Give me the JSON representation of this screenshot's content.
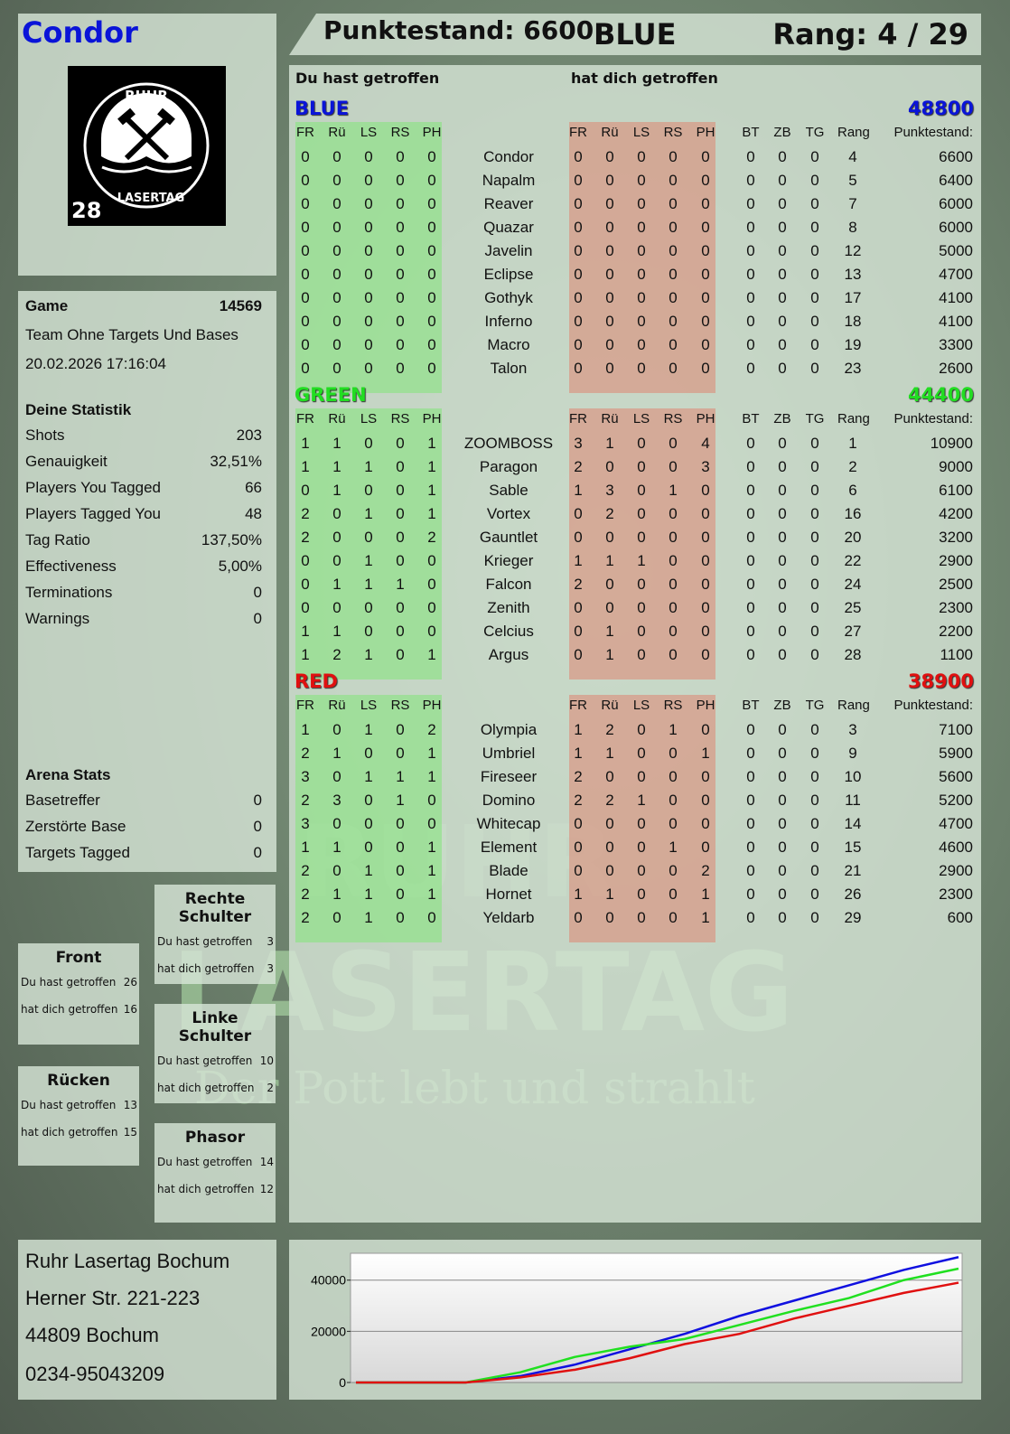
{
  "player": {
    "name": "Condor",
    "logo_text": [
      "RUHR",
      "LASERTAG",
      "28"
    ]
  },
  "header": {
    "score_label": "Punktestand: 6600",
    "team": "BLUE",
    "rank_label": "Rang: 4 / 29"
  },
  "main": {
    "you_hit_label": "Du hast getroffen",
    "hit_you_label": "hat dich getroffen",
    "columns_left": [
      "FR",
      "Rü",
      "LS",
      "RS",
      "PH"
    ],
    "columns_right": [
      "FR",
      "Rü",
      "LS",
      "RS",
      "PH"
    ],
    "columns_extra": [
      "BT",
      "ZB",
      "TG",
      "Rang",
      "Punktestand:"
    ],
    "teams": [
      {
        "name": "BLUE",
        "total": "48800",
        "color": "#0a14d8",
        "rows": [
          [
            "0",
            "0",
            "0",
            "0",
            "0",
            "Condor",
            "0",
            "0",
            "0",
            "0",
            "0",
            "0",
            "0",
            "0",
            "4",
            "6600"
          ],
          [
            "0",
            "0",
            "0",
            "0",
            "0",
            "Napalm",
            "0",
            "0",
            "0",
            "0",
            "0",
            "0",
            "0",
            "0",
            "5",
            "6400"
          ],
          [
            "0",
            "0",
            "0",
            "0",
            "0",
            "Reaver",
            "0",
            "0",
            "0",
            "0",
            "0",
            "0",
            "0",
            "0",
            "7",
            "6000"
          ],
          [
            "0",
            "0",
            "0",
            "0",
            "0",
            "Quazar",
            "0",
            "0",
            "0",
            "0",
            "0",
            "0",
            "0",
            "0",
            "8",
            "6000"
          ],
          [
            "0",
            "0",
            "0",
            "0",
            "0",
            "Javelin",
            "0",
            "0",
            "0",
            "0",
            "0",
            "0",
            "0",
            "0",
            "12",
            "5000"
          ],
          [
            "0",
            "0",
            "0",
            "0",
            "0",
            "Eclipse",
            "0",
            "0",
            "0",
            "0",
            "0",
            "0",
            "0",
            "0",
            "13",
            "4700"
          ],
          [
            "0",
            "0",
            "0",
            "0",
            "0",
            "Gothyk",
            "0",
            "0",
            "0",
            "0",
            "0",
            "0",
            "0",
            "0",
            "17",
            "4100"
          ],
          [
            "0",
            "0",
            "0",
            "0",
            "0",
            "Inferno",
            "0",
            "0",
            "0",
            "0",
            "0",
            "0",
            "0",
            "0",
            "18",
            "4100"
          ],
          [
            "0",
            "0",
            "0",
            "0",
            "0",
            "Macro",
            "0",
            "0",
            "0",
            "0",
            "0",
            "0",
            "0",
            "0",
            "19",
            "3300"
          ],
          [
            "0",
            "0",
            "0",
            "0",
            "0",
            "Talon",
            "0",
            "0",
            "0",
            "0",
            "0",
            "0",
            "0",
            "0",
            "23",
            "2600"
          ]
        ]
      },
      {
        "name": "GREEN",
        "total": "44400",
        "color": "#22dd22",
        "rows": [
          [
            "1",
            "1",
            "0",
            "0",
            "1",
            "ZOOMBOSS",
            "3",
            "1",
            "0",
            "0",
            "4",
            "0",
            "0",
            "0",
            "1",
            "10900"
          ],
          [
            "1",
            "1",
            "1",
            "0",
            "1",
            "Paragon",
            "2",
            "0",
            "0",
            "0",
            "3",
            "0",
            "0",
            "0",
            "2",
            "9000"
          ],
          [
            "0",
            "1",
            "0",
            "0",
            "1",
            "Sable",
            "1",
            "3",
            "0",
            "1",
            "0",
            "0",
            "0",
            "0",
            "6",
            "6100"
          ],
          [
            "2",
            "0",
            "1",
            "0",
            "1",
            "Vortex",
            "0",
            "2",
            "0",
            "0",
            "0",
            "0",
            "0",
            "0",
            "16",
            "4200"
          ],
          [
            "2",
            "0",
            "0",
            "0",
            "2",
            "Gauntlet",
            "0",
            "0",
            "0",
            "0",
            "0",
            "0",
            "0",
            "0",
            "20",
            "3200"
          ],
          [
            "0",
            "0",
            "1",
            "0",
            "0",
            "Krieger",
            "1",
            "1",
            "1",
            "0",
            "0",
            "0",
            "0",
            "0",
            "22",
            "2900"
          ],
          [
            "0",
            "1",
            "1",
            "1",
            "0",
            "Falcon",
            "2",
            "0",
            "0",
            "0",
            "0",
            "0",
            "0",
            "0",
            "24",
            "2500"
          ],
          [
            "0",
            "0",
            "0",
            "0",
            "0",
            "Zenith",
            "0",
            "0",
            "0",
            "0",
            "0",
            "0",
            "0",
            "0",
            "25",
            "2300"
          ],
          [
            "1",
            "1",
            "0",
            "0",
            "0",
            "Celcius",
            "0",
            "1",
            "0",
            "0",
            "0",
            "0",
            "0",
            "0",
            "27",
            "2200"
          ],
          [
            "1",
            "2",
            "1",
            "0",
            "1",
            "Argus",
            "0",
            "1",
            "0",
            "0",
            "0",
            "0",
            "0",
            "0",
            "28",
            "1100"
          ]
        ]
      },
      {
        "name": "RED",
        "total": "38900",
        "color": "#e01010",
        "rows": [
          [
            "1",
            "0",
            "1",
            "0",
            "2",
            "Olympia",
            "1",
            "2",
            "0",
            "1",
            "0",
            "0",
            "0",
            "0",
            "3",
            "7100"
          ],
          [
            "2",
            "1",
            "0",
            "0",
            "1",
            "Umbriel",
            "1",
            "1",
            "0",
            "0",
            "1",
            "0",
            "0",
            "0",
            "9",
            "5900"
          ],
          [
            "3",
            "0",
            "1",
            "1",
            "1",
            "Fireseer",
            "2",
            "0",
            "0",
            "0",
            "0",
            "0",
            "0",
            "0",
            "10",
            "5600"
          ],
          [
            "2",
            "3",
            "0",
            "1",
            "0",
            "Domino",
            "2",
            "2",
            "1",
            "0",
            "0",
            "0",
            "0",
            "0",
            "11",
            "5200"
          ],
          [
            "3",
            "0",
            "0",
            "0",
            "0",
            "Whitecap",
            "0",
            "0",
            "0",
            "0",
            "0",
            "0",
            "0",
            "0",
            "14",
            "4700"
          ],
          [
            "1",
            "1",
            "0",
            "0",
            "1",
            "Element",
            "0",
            "0",
            "0",
            "1",
            "0",
            "0",
            "0",
            "0",
            "15",
            "4600"
          ],
          [
            "2",
            "0",
            "1",
            "0",
            "1",
            "Blade",
            "0",
            "0",
            "0",
            "0",
            "2",
            "0",
            "0",
            "0",
            "21",
            "2900"
          ],
          [
            "2",
            "1",
            "1",
            "0",
            "1",
            "Hornet",
            "1",
            "1",
            "0",
            "0",
            "1",
            "0",
            "0",
            "0",
            "26",
            "2300"
          ],
          [
            "2",
            "0",
            "1",
            "0",
            "0",
            "Yeldarb",
            "0",
            "0",
            "0",
            "0",
            "1",
            "0",
            "0",
            "0",
            "29",
            "600"
          ]
        ]
      }
    ]
  },
  "game": {
    "label": "Game",
    "id": "14569",
    "mode": "Team Ohne Targets Und Bases",
    "datetime": "20.02.2026 17:16:04"
  },
  "stats": {
    "title": "Deine Statistik",
    "items": [
      {
        "label": "Shots",
        "value": "203"
      },
      {
        "label": "Genauigkeit",
        "value": "32,51%"
      },
      {
        "label": "Players You Tagged",
        "value": "66"
      },
      {
        "label": "Players Tagged You",
        "value": "48"
      },
      {
        "label": "Tag Ratio",
        "value": "137,50%"
      },
      {
        "label": "Effectiveness",
        "value": "5,00%"
      },
      {
        "label": "Terminations",
        "value": "0"
      },
      {
        "label": "Warnings",
        "value": "0"
      }
    ]
  },
  "arena": {
    "title": "Arena Stats",
    "items": [
      {
        "label": "Basetreffer",
        "value": "0"
      },
      {
        "label": "Zerstörte Base",
        "value": "0"
      },
      {
        "label": "Targets Tagged",
        "value": "0"
      }
    ]
  },
  "zones": [
    {
      "title": "Rechte Schulter",
      "you_hit_label": "Du hast getroffen",
      "you_hit": "3",
      "hit_you_label": "hat dich getroffen",
      "hit_you": "3"
    },
    {
      "title": "Front",
      "you_hit_label": "Du hast getroffen",
      "you_hit": "26",
      "hit_you_label": "hat dich getroffen",
      "hit_you": "16"
    },
    {
      "title": "Linke Schulter",
      "you_hit_label": "Du hast getroffen",
      "you_hit": "10",
      "hit_you_label": "hat dich getroffen",
      "hit_you": "2"
    },
    {
      "title": "Rücken",
      "you_hit_label": "Du hast getroffen",
      "you_hit": "13",
      "hit_you_label": "hat dich getroffen",
      "hit_you": "15"
    },
    {
      "title": "Phasor",
      "you_hit_label": "Du hast getroffen",
      "you_hit": "14",
      "hit_you_label": "hat dich getroffen",
      "hit_you": "12"
    }
  ],
  "venue": {
    "name": "Ruhr Lasertag Bochum",
    "street": "Herner Str. 221-223",
    "city": "44809 Bochum",
    "phone": "0234-95043209"
  },
  "watermark": {
    "line1": "RUHR",
    "line2": "LASERTAG",
    "line3": "Der Pott lebt und strahlt"
  },
  "chart_data": {
    "type": "line",
    "title": "",
    "xlabel": "",
    "ylabel": "",
    "ylim": [
      0,
      50500
    ],
    "yticks": [
      "0",
      "20000",
      "40000"
    ],
    "grid": true,
    "series": [
      {
        "color": "#1010e0",
        "values": [
          0,
          0,
          0,
          2500,
          7000,
          13000,
          19000,
          26000,
          32000,
          38000,
          44000,
          49000
        ]
      },
      {
        "color": "#20e020",
        "values": [
          0,
          0,
          0,
          4000,
          10000,
          14000,
          17000,
          22500,
          28000,
          33000,
          40000,
          44500
        ]
      },
      {
        "color": "#e01010",
        "values": [
          0,
          0,
          0,
          2000,
          5000,
          9500,
          15000,
          19000,
          25000,
          30000,
          35000,
          39000
        ]
      }
    ]
  }
}
